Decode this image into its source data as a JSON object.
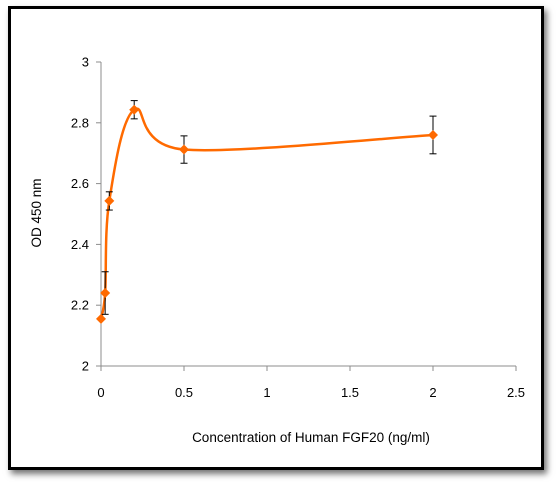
{
  "chart_data": {
    "type": "line",
    "title": "",
    "xlabel": "Concentration of Human FGF20 (ng/ml)",
    "ylabel": "OD 450 nm",
    "xlim": [
      0,
      2.5
    ],
    "ylim": [
      2,
      3
    ],
    "x_ticks": [
      "0",
      "0.5",
      "1",
      "1.5",
      "2",
      "2.5"
    ],
    "y_ticks": [
      "2",
      "2.2",
      "2.4",
      "2.6",
      "2.8",
      "3"
    ],
    "grid": false,
    "legend": "none",
    "series": [
      {
        "color": "#ff6a00",
        "marker": "diamond",
        "smoothed": true,
        "points": [
          {
            "x": 0.0,
            "y": 2.155,
            "err": 0.0
          },
          {
            "x": 0.025,
            "y": 2.24,
            "err": 0.07
          },
          {
            "x": 0.05,
            "y": 2.543,
            "err": 0.03
          },
          {
            "x": 0.2,
            "y": 2.843,
            "err": 0.03
          },
          {
            "x": 0.5,
            "y": 2.712,
            "err": 0.045
          },
          {
            "x": 2.0,
            "y": 2.76,
            "err": 0.062
          }
        ]
      }
    ]
  }
}
